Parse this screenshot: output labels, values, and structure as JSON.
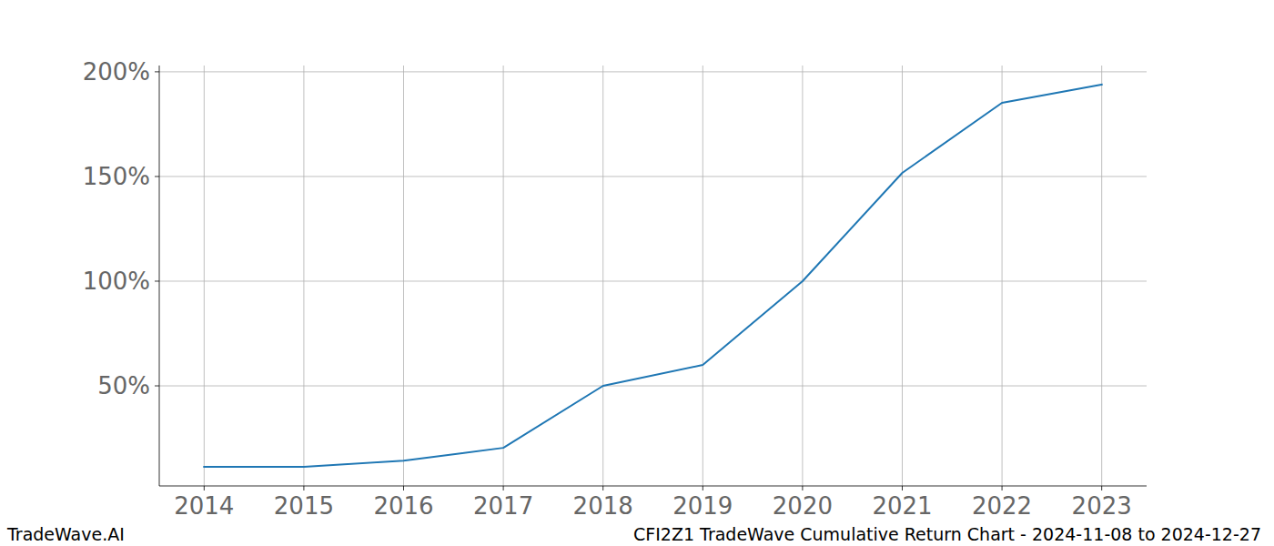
{
  "chart_data": {
    "type": "line",
    "title": "CFI2Z1 TradeWave Cumulative Return Chart - 2024-11-08 to 2024-12-27",
    "annotations": [
      "TradeWave.AI"
    ],
    "x": [
      2014,
      2015,
      2016,
      2017,
      2018,
      2019,
      2020,
      2021,
      2022,
      2023
    ],
    "series": [
      {
        "name": "CFI2Z1",
        "color": "#1f77b4",
        "values": [
          11.3,
          11.3,
          14.3,
          20.4,
          50,
          60,
          100,
          151.7,
          185.2,
          193.9
        ]
      }
    ],
    "xlim": [
      2013.55,
      2023.45
    ],
    "xticks": [
      2014,
      2015,
      2016,
      2017,
      2018,
      2019,
      2020,
      2021,
      2022,
      2023
    ],
    "ylim": [
      2.2,
      203.0
    ],
    "yticks": [
      {
        "value": 50,
        "label": "50%"
      },
      {
        "value": 100,
        "label": "100%"
      },
      {
        "value": 150,
        "label": "150%"
      },
      {
        "value": 200,
        "label": "200%"
      }
    ],
    "grid": true
  }
}
